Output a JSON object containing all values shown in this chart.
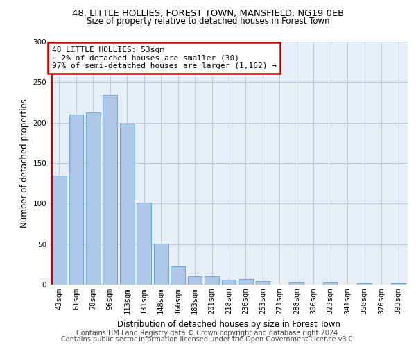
{
  "title_line1": "48, LITTLE HOLLIES, FOREST TOWN, MANSFIELD, NG19 0EB",
  "title_line2": "Size of property relative to detached houses in Forest Town",
  "xlabel": "Distribution of detached houses by size in Forest Town",
  "ylabel": "Number of detached properties",
  "categories": [
    "43sqm",
    "61sqm",
    "78sqm",
    "96sqm",
    "113sqm",
    "131sqm",
    "148sqm",
    "166sqm",
    "183sqm",
    "201sqm",
    "218sqm",
    "236sqm",
    "253sqm",
    "271sqm",
    "288sqm",
    "306sqm",
    "323sqm",
    "341sqm",
    "358sqm",
    "376sqm",
    "393sqm"
  ],
  "values": [
    135,
    210,
    213,
    234,
    199,
    101,
    51,
    22,
    10,
    10,
    6,
    7,
    4,
    0,
    3,
    0,
    3,
    0,
    2,
    0,
    2
  ],
  "bar_color": "#aec6e8",
  "bar_edge_color": "#5a9fd4",
  "annotation_text": "48 LITTLE HOLLIES: 53sqm\n← 2% of detached houses are smaller (30)\n97% of semi-detached houses are larger (1,162) →",
  "annotation_box_color": "#ffffff",
  "annotation_box_edge_color": "#cc0000",
  "highlight_line_color": "#cc0000",
  "ylim": [
    0,
    300
  ],
  "yticks": [
    0,
    50,
    100,
    150,
    200,
    250,
    300
  ],
  "footer_line1": "Contains HM Land Registry data © Crown copyright and database right 2024.",
  "footer_line2": "Contains public sector information licensed under the Open Government Licence v3.0.",
  "background_color": "#ffffff",
  "plot_bg_color": "#e8eef8",
  "grid_color": "#c0c8d8",
  "title_fontsize": 9.5,
  "subtitle_fontsize": 8.5,
  "axis_label_fontsize": 8.5,
  "tick_fontsize": 7.5,
  "annotation_fontsize": 8,
  "footer_fontsize": 7
}
